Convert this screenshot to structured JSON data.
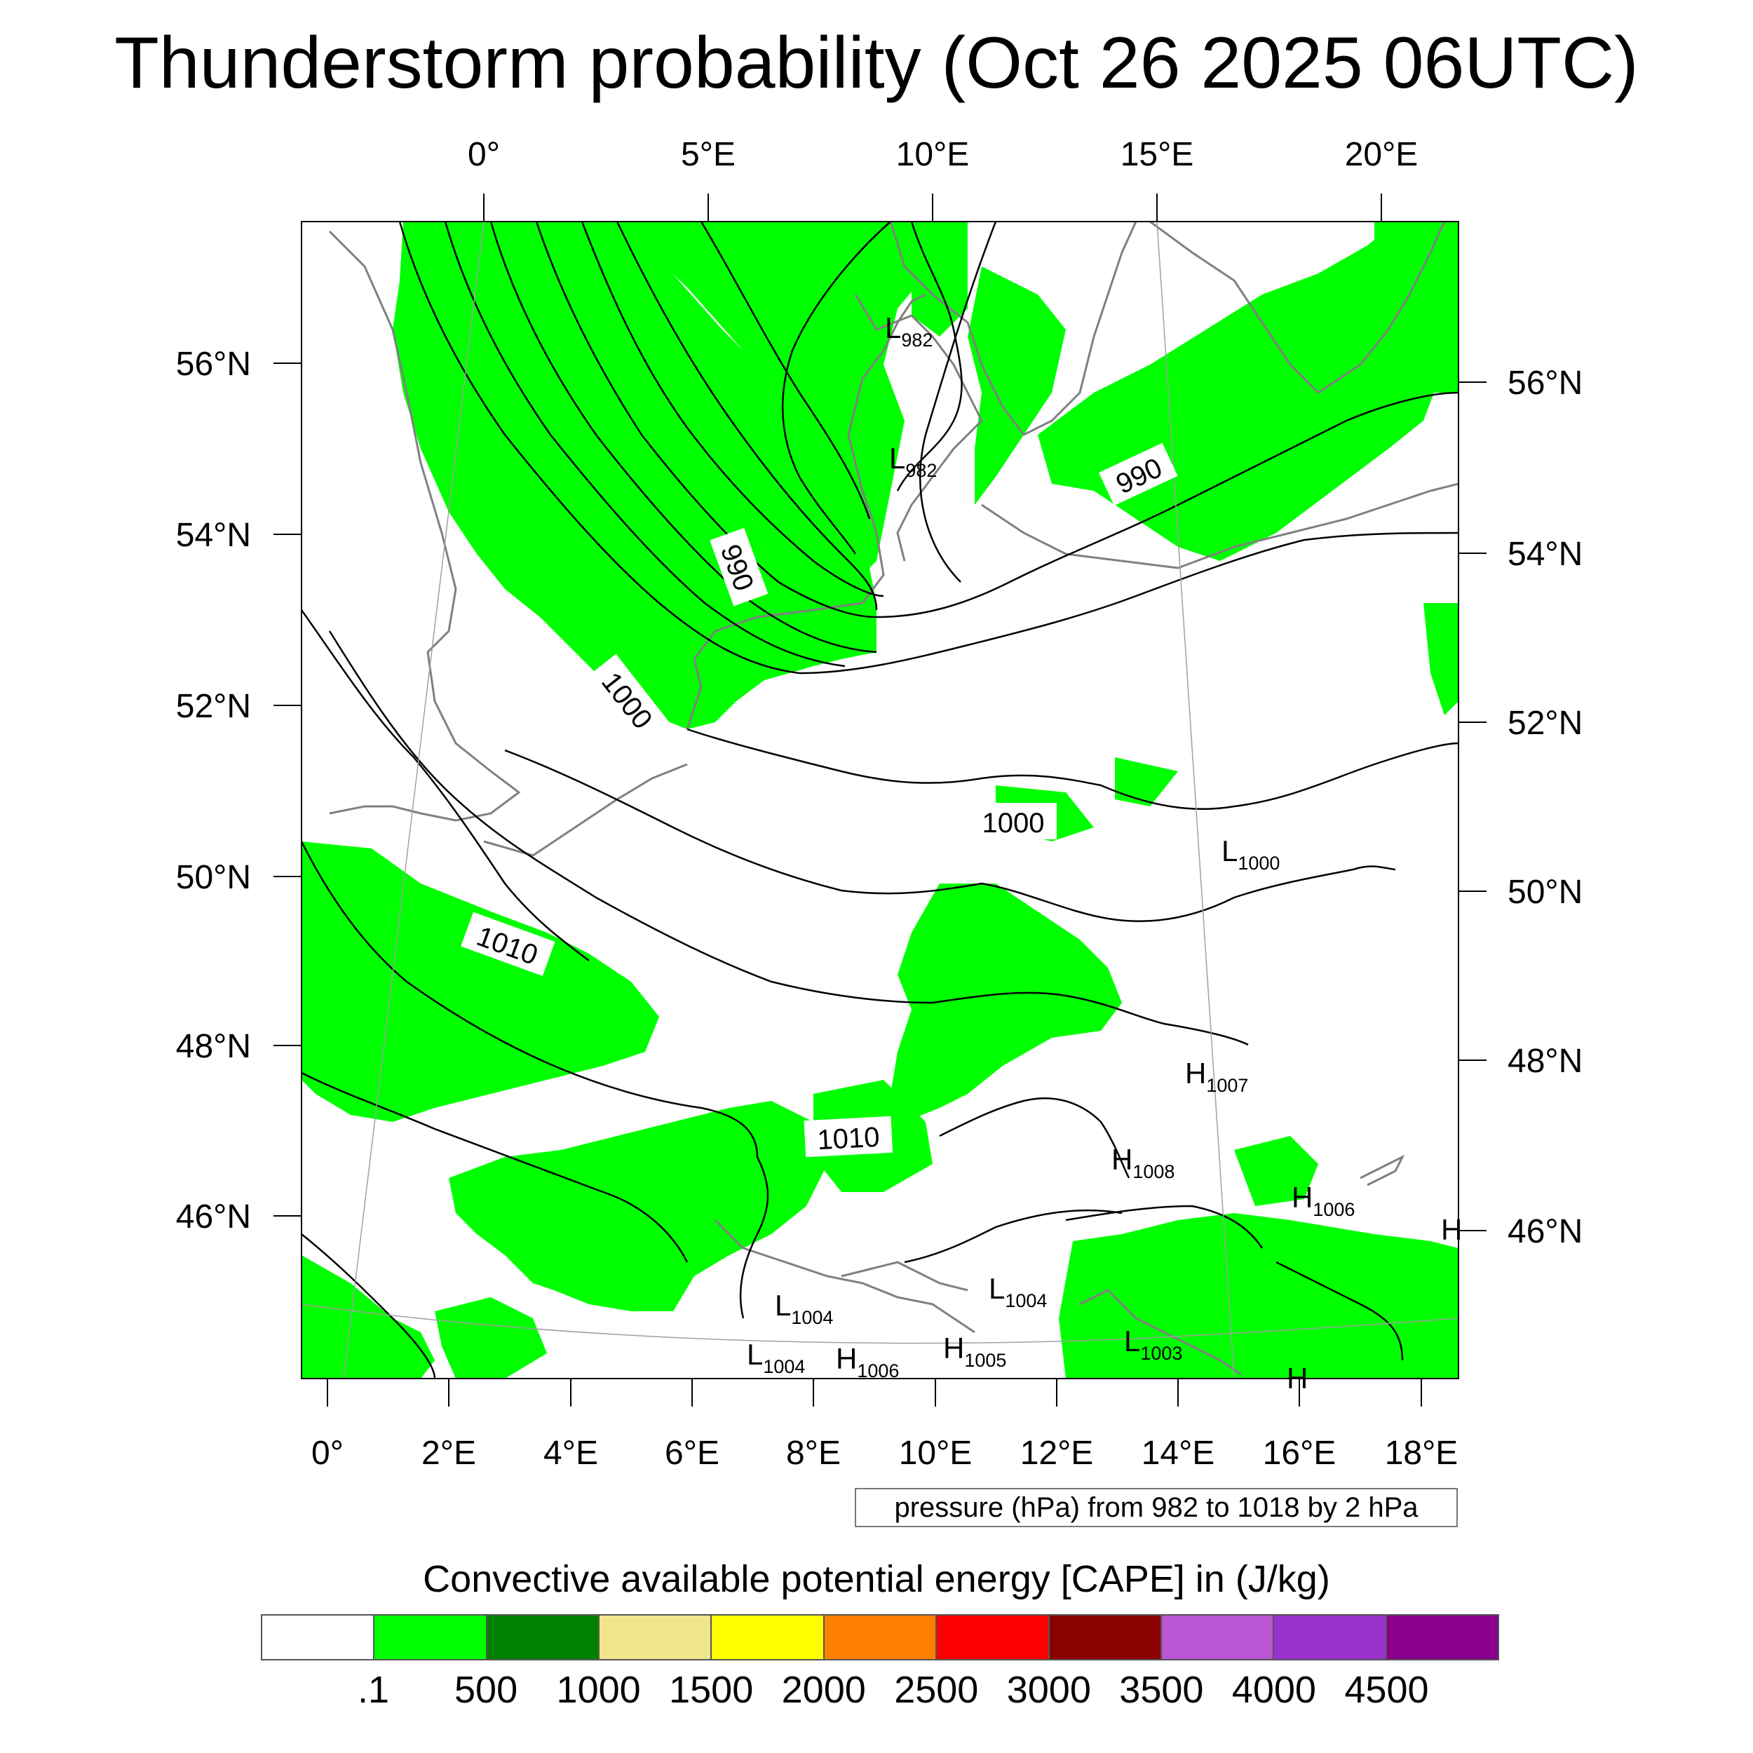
{
  "title": "Thunderstorm probability (Oct 26 2025 06UTC)",
  "map": {
    "top_lon_labels": [
      "0°",
      "5°E",
      "10°E",
      "15°E",
      "20°E"
    ],
    "bottom_lon_labels": [
      "0°",
      "2°E",
      "4°E",
      "6°E",
      "8°E",
      "10°E",
      "12°E",
      "14°E",
      "16°E",
      "18°E"
    ],
    "left_lat_labels": [
      "56°N",
      "54°N",
      "52°N",
      "50°N",
      "48°N",
      "46°N"
    ],
    "right_lat_labels": [
      "56°N",
      "54°N",
      "52°N",
      "50°N",
      "48°N",
      "46°N"
    ],
    "contour_labels": [
      "990",
      "1000",
      "990",
      "1000",
      "1010",
      "1010"
    ],
    "pressure_centers": [
      {
        "type": "L",
        "value": "982"
      },
      {
        "type": "L",
        "value": "982"
      },
      {
        "type": "L",
        "value": "1000"
      },
      {
        "type": "H",
        "value": "1007"
      },
      {
        "type": "H",
        "value": "1008"
      },
      {
        "type": "H",
        "value": "1006"
      },
      {
        "type": "L",
        "value": "1004"
      },
      {
        "type": "L",
        "value": "1004"
      },
      {
        "type": "L",
        "value": "1004"
      },
      {
        "type": "H",
        "value": "1006"
      },
      {
        "type": "H",
        "value": "1005"
      },
      {
        "type": "L",
        "value": "1003"
      },
      {
        "type": "H",
        "value": ""
      },
      {
        "type": "H",
        "value": ""
      }
    ],
    "colors": {
      "cape_fill": "#00ff00",
      "contour": "#000000",
      "coastline": "#808080",
      "graticule": "#a0a0a0"
    },
    "contour_info": "pressure (hPa) from 982 to 1018 by 2 hPa"
  },
  "colorbar": {
    "title": "Convective available potential energy [CAPE] in (J/kg)",
    "colors": [
      "#ffffff",
      "#00ff00",
      "#008000",
      "#f0e68c",
      "#ffff00",
      "#ff8000",
      "#ff0000",
      "#8b0000",
      "#ba55d3",
      "#9932cc",
      "#8b008b"
    ],
    "tick_labels": [
      ".1",
      "500",
      "1000",
      "1500",
      "2000",
      "2500",
      "3000",
      "3500",
      "4000",
      "4500"
    ]
  }
}
